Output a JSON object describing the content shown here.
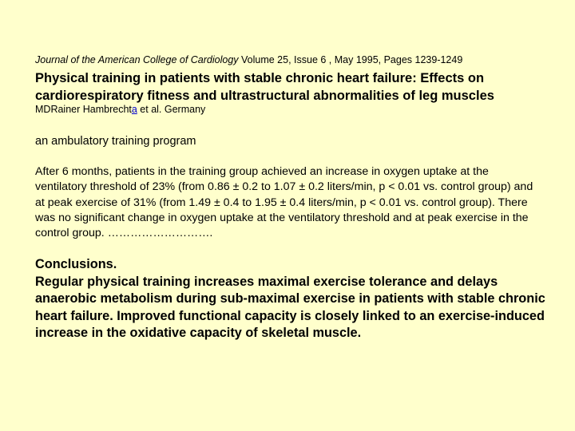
{
  "citation": {
    "journal": "Journal of the American College of Cardiology",
    "details": " Volume 25, Issue 6 , May 1995, Pages 1239-1249"
  },
  "title": "Physical training in patients with stable chronic heart failure: Effects on cardiorespiratory fitness and ultrastructural abnormalities of leg muscles",
  "authors": {
    "prefix": "MDRainer Hambrecht",
    "link": "a",
    "suffix": " et al. Germany"
  },
  "program": "an ambulatory training program",
  "results": "After 6 months, patients in the training group achieved an increase in oxygen uptake at the ventilatory threshold of 23% (from 0.86 ± 0.2 to 1.07 ± 0.2 liters/min, p < 0.01 vs. control group) and at peak exercise of 31% (from 1.49 ± 0.4 to 1.95 ± 0.4 liters/min, p < 0.01 vs. control group). There was no significant change in oxygen uptake at the ventilatory threshold and at peak exercise in the control group. ……………………….",
  "conclusions": {
    "heading": "Conclusions.",
    "body": "Regular physical training increases maximal exercise tolerance and delays anaerobic metabolism during sub-maximal exercise in patients with stable chronic heart failure. Improved functional capacity is closely linked to an exercise-induced increase in the oxidative capacity of skeletal muscle."
  },
  "colors": {
    "background": "#ffffcc",
    "text": "#000000",
    "link": "#0000cc"
  }
}
